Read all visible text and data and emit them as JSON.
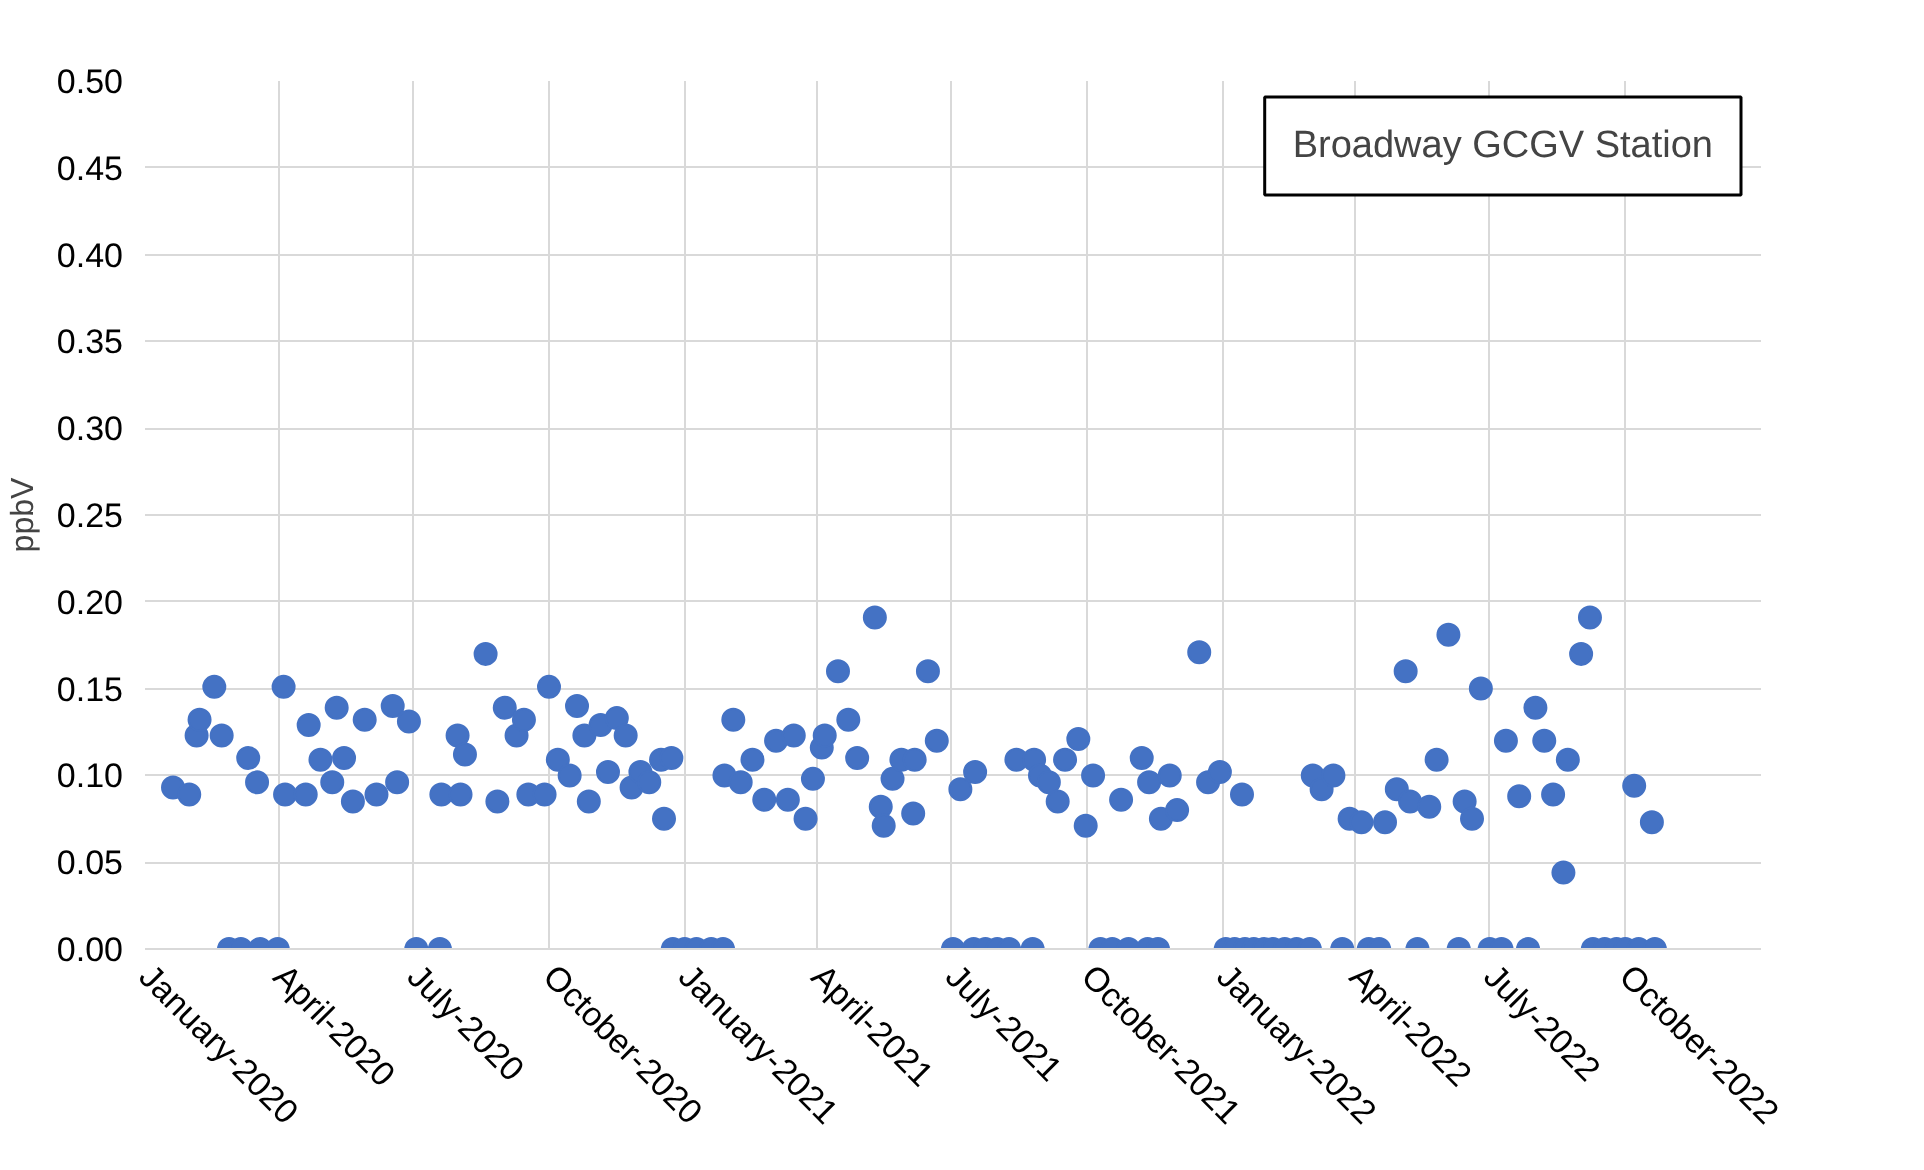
{
  "chart_data": {
    "type": "scatter",
    "title": "Broadway GCGV Station",
    "ylabel": "ppbV",
    "x": [
      "2020-01-20",
      "2020-01-31",
      "2020-02-05",
      "2020-02-07",
      "2020-02-17",
      "2020-02-22",
      "2020-02-27",
      "2020-03-06",
      "2020-03-11",
      "2020-03-17",
      "2020-03-19",
      "2020-03-31",
      "2020-04-04",
      "2020-04-05",
      "2020-04-19",
      "2020-04-21",
      "2020-04-29",
      "2020-05-07",
      "2020-05-10",
      "2020-05-15",
      "2020-05-21",
      "2020-05-29",
      "2020-06-06",
      "2020-06-17",
      "2020-06-20",
      "2020-06-28",
      "2020-07-03",
      "2020-07-19",
      "2020-07-20",
      "2020-07-31",
      "2020-08-02",
      "2020-08-05",
      "2020-08-19",
      "2020-08-27",
      "2020-09-01",
      "2020-09-09",
      "2020-09-14",
      "2020-09-17",
      "2020-09-28",
      "2020-10-01",
      "2020-10-07",
      "2020-10-15",
      "2020-10-20",
      "2020-10-25",
      "2020-10-28",
      "2020-11-05",
      "2020-11-10",
      "2020-11-16",
      "2020-11-22",
      "2020-11-26",
      "2020-12-02",
      "2020-12-08",
      "2020-12-16",
      "2020-12-18",
      "2020-12-23",
      "2020-12-24",
      "2021-01-01",
      "2021-01-09",
      "2021-01-19",
      "2021-01-27",
      "2021-01-28",
      "2021-02-03",
      "2021-02-08",
      "2021-02-16",
      "2021-02-24",
      "2021-03-04",
      "2021-03-12",
      "2021-03-16",
      "2021-03-24",
      "2021-03-29",
      "2021-04-04",
      "2021-04-06",
      "2021-04-15",
      "2021-04-22",
      "2021-04-28",
      "2021-05-10",
      "2021-05-14",
      "2021-05-16",
      "2021-05-22",
      "2021-05-28",
      "2021-06-05",
      "2021-06-06",
      "2021-06-15",
      "2021-06-21",
      "2021-07-02",
      "2021-07-07",
      "2021-07-16",
      "2021-07-17",
      "2021-07-24",
      "2021-08-01",
      "2021-08-09",
      "2021-08-14",
      "2021-08-25",
      "2021-08-26",
      "2021-08-30",
      "2021-09-05",
      "2021-09-11",
      "2021-09-16",
      "2021-09-25",
      "2021-09-30",
      "2021-10-05",
      "2021-10-10",
      "2021-10-18",
      "2021-10-24",
      "2021-10-29",
      "2021-11-07",
      "2021-11-11",
      "2021-11-12",
      "2021-11-18",
      "2021-11-20",
      "2021-11-26",
      "2021-12-01",
      "2021-12-16",
      "2021-12-22",
      "2021-12-30",
      "2022-01-03",
      "2022-01-09",
      "2022-01-14",
      "2022-01-16",
      "2022-01-22",
      "2022-01-29",
      "2022-02-04",
      "2022-02-12",
      "2022-02-20",
      "2022-03-01",
      "2022-03-03",
      "2022-03-09",
      "2022-03-17",
      "2022-03-23",
      "2022-03-28",
      "2022-04-05",
      "2022-04-10",
      "2022-04-17",
      "2022-04-21",
      "2022-04-29",
      "2022-05-05",
      "2022-05-08",
      "2022-05-13",
      "2022-05-21",
      "2022-05-26",
      "2022-06-03",
      "2022-06-10",
      "2022-06-14",
      "2022-06-19",
      "2022-06-25",
      "2022-07-01",
      "2022-07-09",
      "2022-07-12",
      "2022-07-21",
      "2022-07-27",
      "2022-08-01",
      "2022-08-07",
      "2022-08-13",
      "2022-08-20",
      "2022-08-23",
      "2022-09-01",
      "2022-09-07",
      "2022-09-09",
      "2022-09-17",
      "2022-09-25",
      "2022-10-01",
      "2022-10-07",
      "2022-10-10",
      "2022-10-19",
      "2022-10-21"
    ],
    "series": [
      {
        "color": "#4472c4",
        "values": [
          0.093,
          0.089,
          0.123,
          0.132,
          0.151,
          0.123,
          0,
          0,
          0.11,
          0.096,
          0,
          0,
          0.151,
          0.089,
          0.089,
          0.129,
          0.109,
          0.096,
          0.139,
          0.11,
          0.085,
          0.132,
          0.089,
          0.14,
          0.096,
          0.131,
          0,
          0,
          0.089,
          0.123,
          0.089,
          0.112,
          0.17,
          0.085,
          0.139,
          0.123,
          0.132,
          0.089,
          0.089,
          0.151,
          0.109,
          0.1,
          0.14,
          0.123,
          0.085,
          0.129,
          0.102,
          0.133,
          0.123,
          0.093,
          0.102,
          0.096,
          0.109,
          0.075,
          0.11,
          0,
          0,
          0,
          0,
          0,
          0.1,
          0.132,
          0.096,
          0.109,
          0.086,
          0.12,
          0.086,
          0.123,
          0.075,
          0.098,
          0.116,
          0.123,
          0.16,
          0.132,
          0.11,
          0.191,
          0.082,
          0.071,
          0.098,
          0.109,
          0.078,
          0.109,
          0.16,
          0.12,
          0,
          0.092,
          0,
          0.102,
          0,
          0,
          0,
          0.109,
          0,
          0.109,
          0.1,
          0.096,
          0.085,
          0.109,
          0.121,
          0.071,
          0.1,
          0,
          0,
          0.086,
          0,
          0.11,
          0,
          0.096,
          0,
          0.075,
          0.1,
          0.08,
          0.171,
          0.096,
          0.102,
          0,
          0,
          0.089,
          0,
          0,
          0,
          0,
          0,
          0,
          0,
          0.1,
          0.092,
          0.1,
          0,
          0.075,
          0.073,
          0,
          0,
          0.073,
          0.092,
          0.16,
          0.085,
          0,
          0.082,
          0.109,
          0.181,
          0,
          0.085,
          0.075,
          0.15,
          0,
          0,
          0.12,
          0.088,
          0,
          0.139,
          0.12,
          0.089,
          0.044,
          0.109,
          0.17,
          0.191,
          0,
          0,
          0,
          0,
          0.094,
          0,
          0.073,
          0
        ]
      }
    ],
    "xlim": [
      "2020-01-01",
      "2023-01-01"
    ],
    "xticks": [
      {
        "value": "2020-01-01",
        "label": "January-2020"
      },
      {
        "value": "2020-04-01",
        "label": "April-2020"
      },
      {
        "value": "2020-07-01",
        "label": "July-2020"
      },
      {
        "value": "2020-10-01",
        "label": "October-2020"
      },
      {
        "value": "2021-01-01",
        "label": "January-2021"
      },
      {
        "value": "2021-04-01",
        "label": "April-2021"
      },
      {
        "value": "2021-07-01",
        "label": "July-2021"
      },
      {
        "value": "2021-10-01",
        "label": "October-2021"
      },
      {
        "value": "2022-01-01",
        "label": "January-2022"
      },
      {
        "value": "2022-04-01",
        "label": "April-2022"
      },
      {
        "value": "2022-07-01",
        "label": "July-2022"
      },
      {
        "value": "2022-10-01",
        "label": "October-2022"
      }
    ],
    "ylim": [
      0,
      0.5
    ],
    "yticks": [
      {
        "value": 0,
        "label": "0.00"
      },
      {
        "value": 0.05,
        "label": "0.05"
      },
      {
        "value": 0.1,
        "label": "0.10"
      },
      {
        "value": 0.15,
        "label": "0.15"
      },
      {
        "value": 0.2,
        "label": "0.20"
      },
      {
        "value": 0.25,
        "label": "0.25"
      },
      {
        "value": 0.3,
        "label": "0.30"
      },
      {
        "value": 0.35,
        "label": "0.35"
      },
      {
        "value": 0.4,
        "label": "0.40"
      },
      {
        "value": 0.45,
        "label": "0.45"
      },
      {
        "value": 0.5,
        "label": "0.50"
      }
    ],
    "grid": true,
    "marker": "circle"
  }
}
